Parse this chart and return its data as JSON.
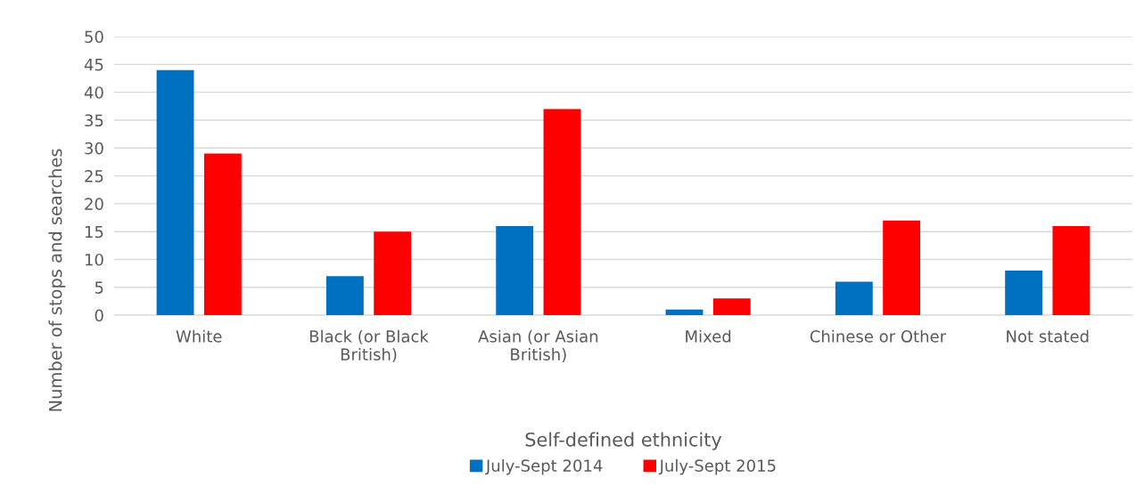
{
  "chart_data": {
    "type": "bar",
    "xlabel": "Self-defined ethnicity",
    "ylabel": "Number of stops and searches",
    "categories": [
      "White",
      "Black (or Black\nBritish)",
      "Asian (or Asian\nBritish)",
      "Mixed",
      "Chinese or Other",
      "Not stated"
    ],
    "series": [
      {
        "name": "July-Sept 2014",
        "color": "#0070c0",
        "values": [
          44,
          7,
          16,
          1,
          6,
          8
        ]
      },
      {
        "name": "July-Sept 2015",
        "color": "#ff0000",
        "values": [
          29,
          15,
          37,
          3,
          17,
          16
        ]
      }
    ],
    "ylim": [
      0,
      50
    ],
    "yticks": [
      0,
      5,
      10,
      15,
      20,
      25,
      30,
      35,
      40,
      45,
      50
    ],
    "grid": "y",
    "legend": "bottom"
  }
}
